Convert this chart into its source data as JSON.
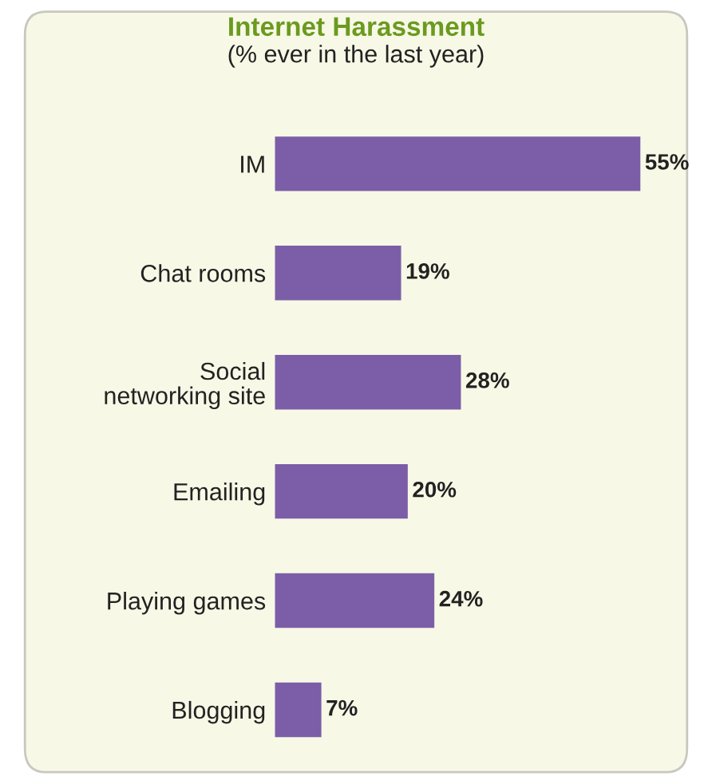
{
  "chart_data": {
    "type": "bar",
    "orientation": "horizontal",
    "title": "Internet Harassment",
    "subtitle": "(% ever in the last year)",
    "categories": [
      "IM",
      "Chat rooms",
      "Social\nnetworking site",
      "Emailing",
      "Playing games",
      "Blogging"
    ],
    "values": [
      55,
      19,
      28,
      20,
      24,
      7
    ],
    "value_labels": [
      "55%",
      "19%",
      "28%",
      "20%",
      "24%",
      "7%"
    ],
    "color": "#7b5ea7"
  }
}
